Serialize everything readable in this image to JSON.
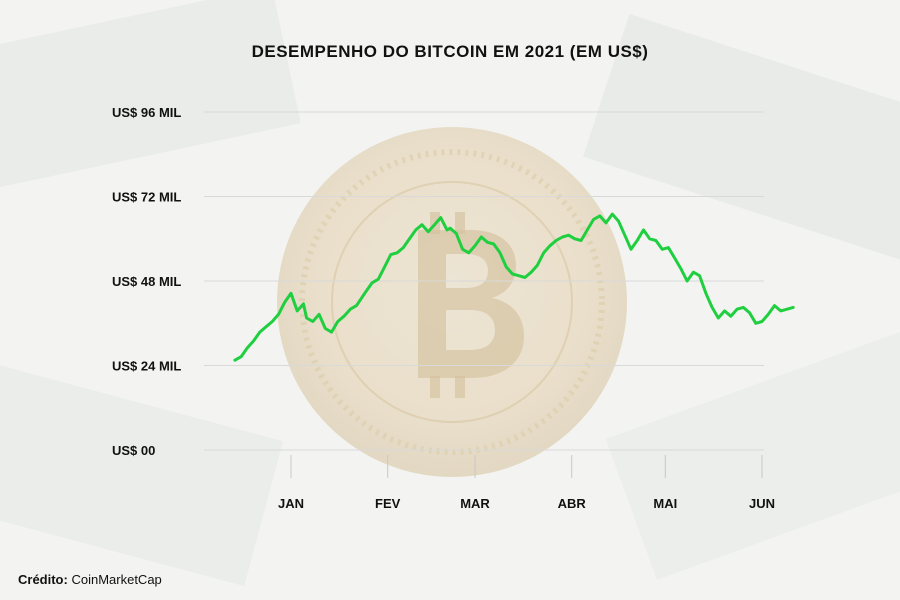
{
  "credit": {
    "label": "Crédito:",
    "source": "CoinMarketCap"
  },
  "colors": {
    "line": "#1fcf3f",
    "grid": "#d9d9d9",
    "text": "#111111"
  },
  "chart_data": {
    "type": "line",
    "title": "DESEMPENHO DO BITCOIN EM 2021 (EM US$)",
    "xlabel": "",
    "ylabel": "",
    "ylim": [
      0,
      96000
    ],
    "ytick_values": [
      0,
      24000,
      48000,
      72000,
      96000
    ],
    "yticks": [
      "US$ 00",
      "US$ 24 MIL",
      "US$ 48 MIL",
      "US$ 72 MIL",
      "US$ 96 MIL"
    ],
    "xlim": [
      "2020-12-21",
      "2021-06-13"
    ],
    "xticks": [
      {
        "date": "2021-01-01",
        "label": "JAN"
      },
      {
        "date": "2021-02-01",
        "label": "FEV"
      },
      {
        "date": "2021-03-01",
        "label": "MAR"
      },
      {
        "date": "2021-04-01",
        "label": "ABR"
      },
      {
        "date": "2021-05-01",
        "label": "MAI"
      },
      {
        "date": "2021-06-01",
        "label": "JUN"
      }
    ],
    "grid": true,
    "series": [
      {
        "x": [
          "2020-12-14",
          "2020-12-16",
          "2020-12-18",
          "2020-12-20",
          "2020-12-22",
          "2020-12-24",
          "2020-12-26",
          "2020-12-28",
          "2020-12-30",
          "2021-01-01",
          "2021-01-03",
          "2021-01-05",
          "2021-01-06",
          "2021-01-08",
          "2021-01-10",
          "2021-01-12",
          "2021-01-14",
          "2021-01-16",
          "2021-01-18",
          "2021-01-20",
          "2021-01-22",
          "2021-01-25",
          "2021-01-27",
          "2021-01-29",
          "2021-01-31",
          "2021-02-02",
          "2021-02-04",
          "2021-02-06",
          "2021-02-08",
          "2021-02-10",
          "2021-02-12",
          "2021-02-14",
          "2021-02-16",
          "2021-02-18",
          "2021-02-20",
          "2021-02-21",
          "2021-02-23",
          "2021-02-25",
          "2021-02-27",
          "2021-03-01",
          "2021-03-03",
          "2021-03-05",
          "2021-03-07",
          "2021-03-09",
          "2021-03-11",
          "2021-03-13",
          "2021-03-15",
          "2021-03-17",
          "2021-03-19",
          "2021-03-21",
          "2021-03-23",
          "2021-03-25",
          "2021-03-27",
          "2021-03-29",
          "2021-03-31",
          "2021-04-02",
          "2021-04-04",
          "2021-04-06",
          "2021-04-08",
          "2021-04-10",
          "2021-04-12",
          "2021-04-14",
          "2021-04-16",
          "2021-04-18",
          "2021-04-20",
          "2021-04-22",
          "2021-04-24",
          "2021-04-26",
          "2021-04-28",
          "2021-04-30",
          "2021-05-02",
          "2021-05-04",
          "2021-05-06",
          "2021-05-08",
          "2021-05-10",
          "2021-05-12",
          "2021-05-14",
          "2021-05-16",
          "2021-05-18",
          "2021-05-20",
          "2021-05-22",
          "2021-05-24",
          "2021-05-26",
          "2021-05-28",
          "2021-05-30",
          "2021-06-01",
          "2021-06-03",
          "2021-06-05",
          "2021-06-07",
          "2021-06-09",
          "2021-06-11"
        ],
        "values": [
          25500,
          26500,
          29000,
          31000,
          33500,
          35000,
          36500,
          38500,
          42000,
          44500,
          39500,
          41500,
          37500,
          36500,
          38500,
          34500,
          33500,
          36500,
          38000,
          40000,
          41000,
          45000,
          47500,
          48500,
          52000,
          55500,
          56000,
          57500,
          60000,
          62500,
          64000,
          62000,
          64000,
          66000,
          62500,
          63000,
          61500,
          57000,
          56000,
          58000,
          60500,
          59000,
          58500,
          56000,
          52000,
          50000,
          49500,
          49000,
          50500,
          52500,
          56000,
          58000,
          59500,
          60500,
          61000,
          60000,
          59500,
          62500,
          65500,
          66500,
          64500,
          67000,
          65000,
          61000,
          57000,
          59500,
          62500,
          60000,
          59500,
          57000,
          57500,
          54500,
          51500,
          48000,
          50500,
          49500,
          44500,
          40500,
          37500,
          39500,
          38000,
          40000,
          40500,
          39000,
          36000,
          36500,
          38500,
          41000,
          39500,
          40000,
          40500
        ]
      }
    ]
  }
}
